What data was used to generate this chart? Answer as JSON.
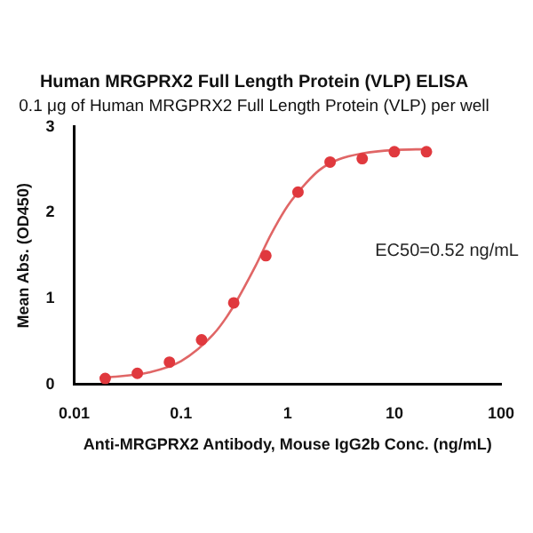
{
  "chart_data": {
    "type": "scatter",
    "title": "Human MRGPRX2 Full Length Protein (VLP) ELISA",
    "subtitle": "0.1 μg of Human MRGPRX2 Full Length Protein (VLP) per well",
    "xlabel": "Anti-MRGPRX2 Antibody, Mouse IgG2b Conc. (ng/mL)",
    "ylabel": "Mean Abs. (OD450)",
    "log": "x",
    "xlim": [
      0.01,
      100
    ],
    "xticks": [
      0.01,
      0.1,
      1,
      10,
      100
    ],
    "ylim": [
      0,
      3
    ],
    "yticks": [
      0,
      1,
      2,
      3
    ],
    "grid": false,
    "legend": false,
    "annotations": [
      "EC50=0.52 ng/mL"
    ],
    "series": [
      {
        "color": "#e0393e",
        "marker": "circle",
        "x": [
          0.0195,
          0.039,
          0.078,
          0.156,
          0.3125,
          0.625,
          1.25,
          2.5,
          5,
          10,
          20
        ],
        "values": [
          0.07,
          0.13,
          0.26,
          0.52,
          0.95,
          1.5,
          2.24,
          2.59,
          2.63,
          2.71,
          2.71
        ]
      },
      {
        "type": "line",
        "color": "#e06666",
        "marker": "none",
        "line_style": "solid",
        "x": [
          0.02,
          0.05,
          0.1,
          0.2,
          0.3,
          0.5,
          0.7,
          1,
          1.5,
          2,
          3,
          5,
          10,
          20
        ],
        "values": [
          0.08,
          0.14,
          0.27,
          0.58,
          0.88,
          1.38,
          1.75,
          2.08,
          2.35,
          2.5,
          2.62,
          2.69,
          2.73,
          2.74
        ]
      }
    ]
  }
}
